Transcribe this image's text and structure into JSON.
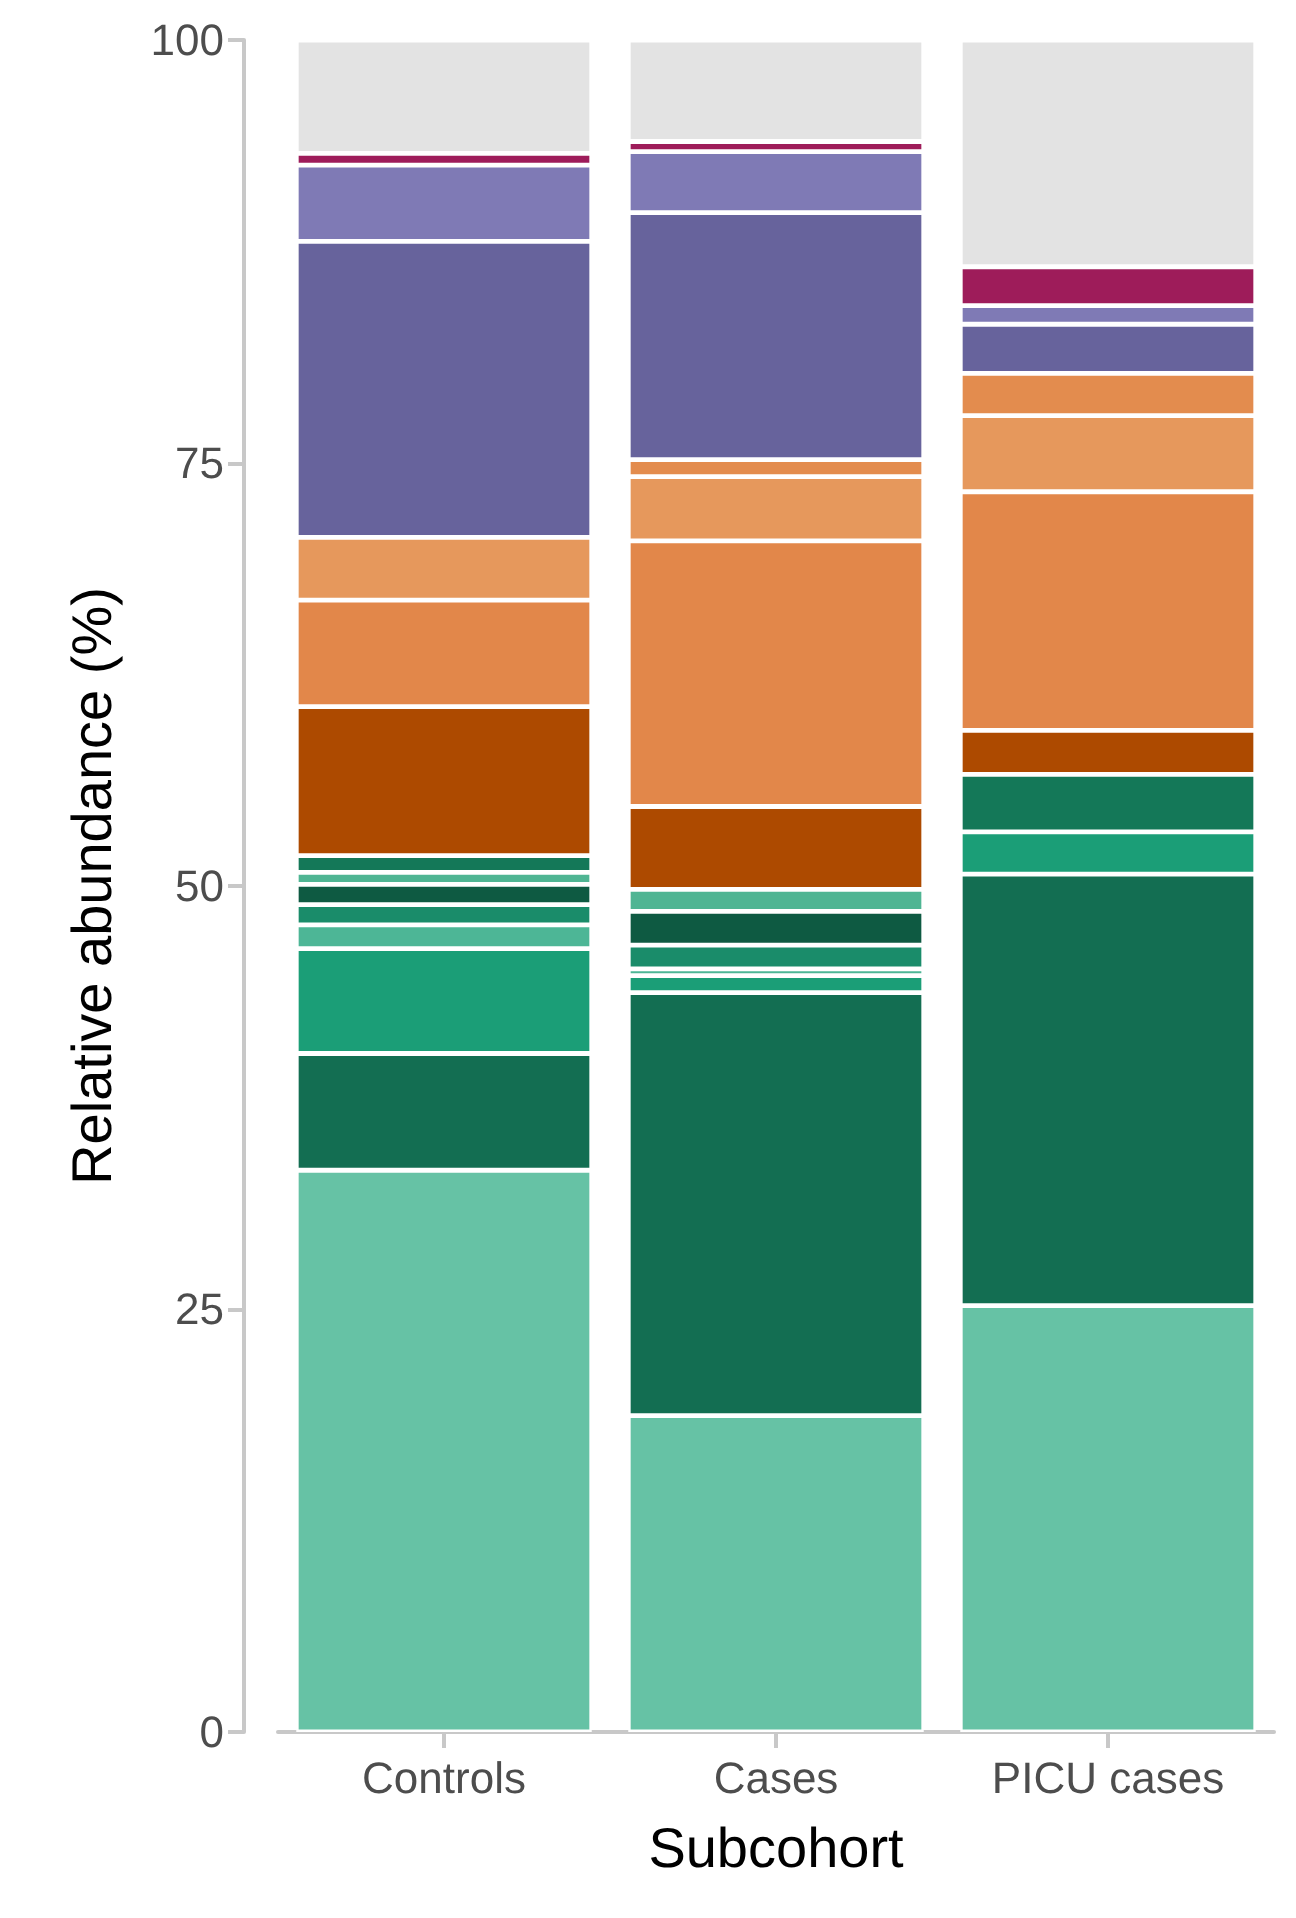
{
  "chart_data": {
    "type": "bar",
    "stacked": true,
    "xlabel": "Subcohort",
    "ylabel": "Relative abundance (%)",
    "categories": [
      "Controls",
      "Cases",
      "PICU cases"
    ],
    "ylim": [
      0,
      100
    ],
    "yticks": [
      0,
      25,
      50,
      75,
      100
    ],
    "grid": false,
    "series": [
      {
        "color": "#66c2a5",
        "values": [
          33.2,
          18.7,
          25.2
        ]
      },
      {
        "color": "#136e52",
        "values": [
          6.9,
          25.0,
          25.5
        ]
      },
      {
        "color": "#1b9e77",
        "values": [
          6.2,
          1.0,
          2.5
        ]
      },
      {
        "color": "#4db696",
        "values": [
          1.4,
          0.4,
          null
        ]
      },
      {
        "color": "#1a8c6a",
        "values": [
          1.2,
          1.4,
          null
        ]
      },
      {
        "color": "#0e5a42",
        "values": [
          1.2,
          2.0,
          null
        ]
      },
      {
        "color": "#4fb593",
        "values": [
          0.7,
          1.3,
          null
        ]
      },
      {
        "color": "#147858",
        "values": [
          1.0,
          null,
          3.4
        ]
      },
      {
        "color": "#ad4a00",
        "values": [
          8.8,
          4.9,
          2.6
        ]
      },
      {
        "color": "#e2874a",
        "values": [
          6.3,
          15.7,
          14.1
        ]
      },
      {
        "color": "#e6985c",
        "values": [
          3.7,
          3.8,
          4.5
        ]
      },
      {
        "color": "#e38c4e",
        "values": [
          null,
          1.0,
          2.5
        ]
      },
      {
        "color": "#67639c",
        "values": [
          17.5,
          14.6,
          2.9
        ]
      },
      {
        "color": "#7f7ab5",
        "values": [
          4.5,
          3.6,
          1.1
        ]
      },
      {
        "color": "#9e1c5a",
        "values": [
          0.7,
          0.6,
          2.3
        ]
      },
      {
        "color": "#e3e3e3",
        "values": [
          6.7,
          6.0,
          13.4
        ]
      }
    ]
  }
}
